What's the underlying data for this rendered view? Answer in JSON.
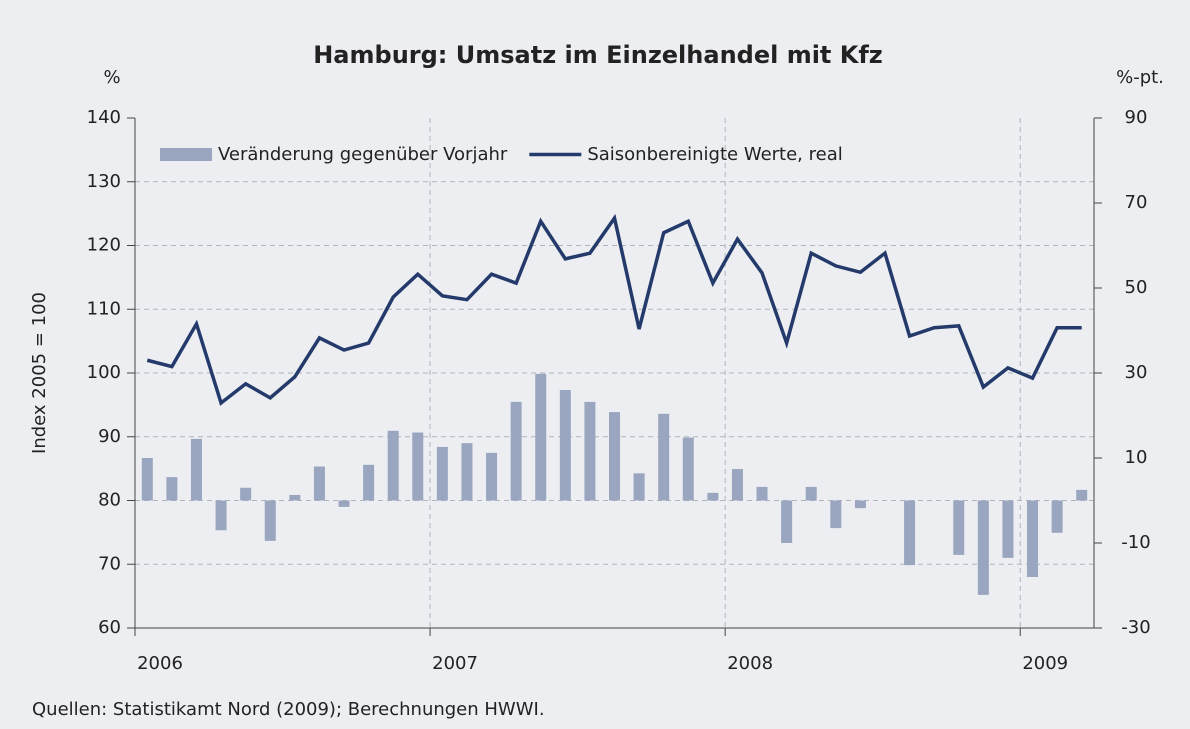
{
  "chart_data": {
    "type": "bar-line",
    "title": "Hamburg: Umsatz im Einzelhandel mit Kfz",
    "y_unit": "%",
    "y2_unit": "%-pt.",
    "y_label": "Index 2005 = 100",
    "source": "Quellen: Statistikamt Nord (2009); Berechnungen HWWI.",
    "categories": [
      "2006",
      null,
      null,
      null,
      null,
      null,
      null,
      null,
      null,
      null,
      null,
      null,
      "2007",
      null,
      null,
      null,
      null,
      null,
      null,
      null,
      null,
      null,
      null,
      null,
      "2008",
      null,
      null,
      null,
      null,
      null,
      null,
      null,
      null,
      null,
      null,
      null,
      "2009",
      null,
      null
    ],
    "series": [
      {
        "name": "Veränderung gegenüber Vorjahr",
        "type": "bar",
        "axis": "y2",
        "color": "#9aa6c0",
        "values": [
          10,
          5.5,
          14.5,
          -7,
          3,
          -9.5,
          1.3,
          8,
          -1.5,
          8.4,
          16.4,
          16,
          12.6,
          13.5,
          11.2,
          23.2,
          29.8,
          26,
          23.2,
          20.8,
          6.4,
          20.4,
          14.8,
          1.8,
          7.4,
          3.2,
          -10,
          3.2,
          -6.5,
          -1.8,
          0,
          -15.2,
          0,
          -12.8,
          -22.2,
          -13.5,
          -18,
          -7.6,
          2.5
        ]
      },
      {
        "name": "Saisonbereinigte Werte, real",
        "type": "line",
        "axis": "y",
        "color": "#243a6b",
        "values": [
          102,
          101,
          107.7,
          95.3,
          98.3,
          96.1,
          99.4,
          105.5,
          103.6,
          104.7,
          111.9,
          115.5,
          112.1,
          111.5,
          115.5,
          114.1,
          123.8,
          117.9,
          118.8,
          124.3,
          106.9,
          122,
          123.8,
          114.1,
          121,
          115.7,
          104.7,
          118.8,
          116.8,
          115.8,
          118.8,
          105.8,
          107.1,
          107.4,
          97.8,
          100.8,
          99.2,
          107.1,
          107.1
        ]
      }
    ],
    "ylim": [
      60,
      140
    ],
    "yticks": [
      60,
      70,
      80,
      90,
      100,
      110,
      120,
      130,
      140
    ],
    "y2lim": [
      -30,
      90
    ],
    "y2ticks": [
      -30,
      -10,
      10,
      30,
      50,
      70,
      90
    ],
    "grid": true,
    "legend": "top-left"
  }
}
